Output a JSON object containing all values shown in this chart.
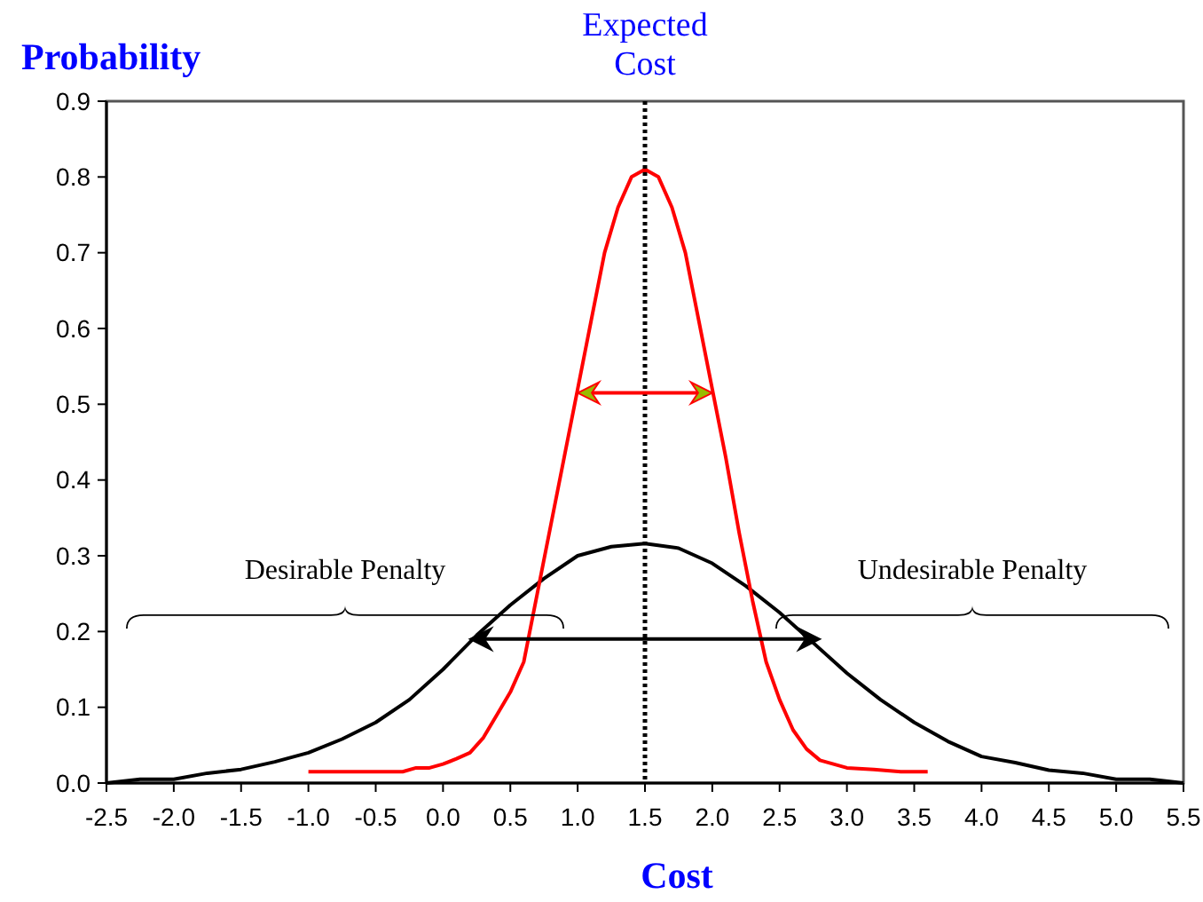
{
  "chart_data": {
    "type": "line",
    "xlabel": "Cost",
    "ylabel": "Probability",
    "xlim": [
      -2.5,
      5.5
    ],
    "xticks": [
      {
        "value": -2.5,
        "label": "-2.5"
      },
      {
        "value": -2,
        "label": "-2.0"
      },
      {
        "value": -1.5,
        "label": "-1.5"
      },
      {
        "value": -1,
        "label": "-1.0"
      },
      {
        "value": -0.5,
        "label": "-0.5"
      },
      {
        "value": 0,
        "label": "0.0"
      },
      {
        "value": 0.5,
        "label": "0.5"
      },
      {
        "value": 1,
        "label": "1.0"
      },
      {
        "value": 1.5,
        "label": "1.5"
      },
      {
        "value": 2,
        "label": "2.0"
      },
      {
        "value": 2.5,
        "label": "2.5"
      },
      {
        "value": 3,
        "label": "3.0"
      },
      {
        "value": 3.5,
        "label": "3.5"
      },
      {
        "value": 4,
        "label": "4.0"
      },
      {
        "value": 4.5,
        "label": "4.5"
      },
      {
        "value": 5,
        "label": "5.0"
      },
      {
        "value": 5.5,
        "label": "5.5"
      }
    ],
    "ylim": [
      0,
      0.9
    ],
    "yticks": [
      {
        "value": 0,
        "label": "0.0"
      },
      0.1,
      0.2,
      0.3,
      0.4,
      0.5,
      0.6,
      0.7,
      0.8,
      0.9
    ],
    "grid": false,
    "marker": "none",
    "line_style": "solid",
    "ref_lines": [
      {
        "axis": "x",
        "value": 1.5,
        "label": "Expected Cost",
        "color": "#000000",
        "line_style": "dotted"
      }
    ],
    "annotations": [
      "Desirable Penalty",
      "Undesirable Penalty"
    ],
    "series": [
      {
        "color": "#000000",
        "x": [
          -2.5,
          -2.25,
          -2,
          -1.75,
          -1.5,
          -1.25,
          -1,
          -0.75,
          -0.5,
          -0.25,
          0,
          0.25,
          0.5,
          0.75,
          1,
          1.25,
          1.5,
          1.75,
          2,
          2.25,
          2.5,
          2.75,
          3,
          3.25,
          3.5,
          3.75,
          4,
          4.25,
          4.5,
          4.75,
          5,
          5.25,
          5.5
        ],
        "values": [
          0,
          0.005,
          0.005,
          0.013,
          0.018,
          0.028,
          0.04,
          0.058,
          0.08,
          0.11,
          0.15,
          0.195,
          0.235,
          0.27,
          0.3,
          0.312,
          0.316,
          0.31,
          0.29,
          0.26,
          0.225,
          0.185,
          0.145,
          0.11,
          0.08,
          0.055,
          0.035,
          0.027,
          0.017,
          0.013,
          0.005,
          0.005,
          0
        ]
      },
      {
        "color": "#ff0000",
        "x": [
          -1,
          -0.5,
          -0.3,
          -0.2,
          -0.1,
          0,
          0.1,
          0.2,
          0.3,
          0.4,
          0.5,
          0.6,
          0.7,
          0.8,
          0.9,
          1,
          1.1,
          1.2,
          1.3,
          1.4,
          1.5,
          1.6,
          1.7,
          1.8,
          1.9,
          2,
          2.1,
          2.2,
          2.3,
          2.4,
          2.5,
          2.6,
          2.7,
          2.8,
          3,
          3.2,
          3.4,
          3.6
        ],
        "values": [
          0.015,
          0.015,
          0.015,
          0.02,
          0.02,
          0.025,
          0.032,
          0.04,
          0.06,
          0.09,
          0.12,
          0.16,
          0.25,
          0.34,
          0.43,
          0.52,
          0.61,
          0.7,
          0.76,
          0.8,
          0.81,
          0.8,
          0.76,
          0.7,
          0.61,
          0.52,
          0.43,
          0.33,
          0.24,
          0.16,
          0.11,
          0.07,
          0.045,
          0.03,
          0.02,
          0.018,
          0.015,
          0.015
        ]
      }
    ]
  }
}
